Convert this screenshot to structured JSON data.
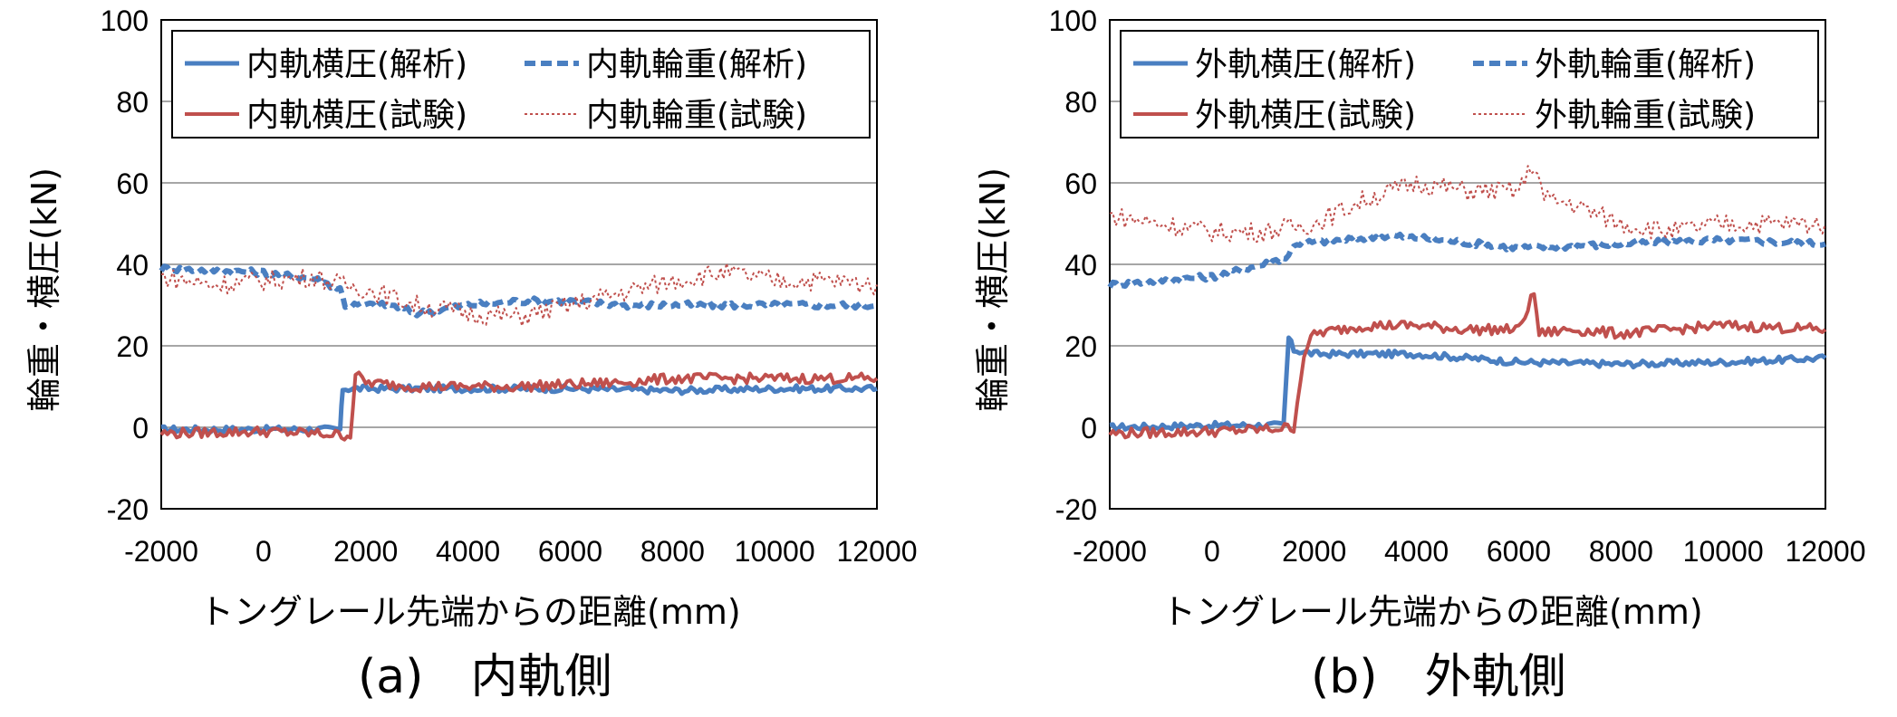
{
  "panels": [
    {
      "caption": "(a)　内軌側",
      "ylabel": "輪重・横圧(kN)",
      "xlabel": "トングレール先端からの距離(mm)"
    },
    {
      "caption": "(b)　外軌側",
      "ylabel": "輪重・横圧(kN)",
      "xlabel": "トングレール先端からの距離(mm)"
    }
  ],
  "colors": {
    "analysis": "#4a7fc1",
    "test": "#c0504d",
    "grid": "#a6a6a6"
  },
  "chart_data": [
    {
      "type": "line",
      "xlabel": "トングレール先端からの距離(mm)",
      "ylabel": "輪重・横圧(kN)",
      "xlim": [
        -2000,
        12000
      ],
      "ylim": [
        -20,
        100
      ],
      "xticks": [
        -2000,
        0,
        2000,
        4000,
        6000,
        8000,
        10000,
        12000
      ],
      "yticks": [
        -20,
        0,
        20,
        40,
        60,
        80,
        100
      ],
      "grid": "horizontal",
      "legend_position": "top",
      "series": [
        {
          "name": "内軌横圧(解析)",
          "style": "solid-analysis",
          "points": [
            [
              -2000,
              -0.5
            ],
            [
              0,
              -0.5
            ],
            [
              1500,
              -0.5
            ],
            [
              1550,
              9.5
            ],
            [
              2000,
              9.5
            ],
            [
              4000,
              9.5
            ],
            [
              6000,
              9.5
            ],
            [
              8000,
              9
            ],
            [
              10000,
              9.5
            ],
            [
              12000,
              9.5
            ]
          ]
        },
        {
          "name": "内軌輪重(解析)",
          "style": "dashed-analysis",
          "points": [
            [
              -2000,
              39
            ],
            [
              0,
              38
            ],
            [
              1000,
              36.5
            ],
            [
              1500,
              34
            ],
            [
              1600,
              30
            ],
            [
              2500,
              30
            ],
            [
              3000,
              28
            ],
            [
              3500,
              29
            ],
            [
              4000,
              30
            ],
            [
              5000,
              31
            ],
            [
              6000,
              31
            ],
            [
              7000,
              30
            ],
            [
              8000,
              30
            ],
            [
              10000,
              30
            ],
            [
              12000,
              30
            ]
          ]
        },
        {
          "name": "内軌横圧(試験)",
          "style": "solid-test",
          "points": [
            [
              -2000,
              -1.5
            ],
            [
              0,
              -1
            ],
            [
              1000,
              -1.5
            ],
            [
              1700,
              -2
            ],
            [
              1800,
              13
            ],
            [
              2000,
              11
            ],
            [
              3000,
              10
            ],
            [
              5000,
              10
            ],
            [
              6000,
              10.5
            ],
            [
              7000,
              11
            ],
            [
              8000,
              12
            ],
            [
              10000,
              12
            ],
            [
              12000,
              12
            ]
          ]
        },
        {
          "name": "内軌輪重(試験)",
          "style": "dotted-test",
          "points": [
            [
              -2000,
              37
            ],
            [
              -1000,
              35
            ],
            [
              0,
              36
            ],
            [
              1000,
              37
            ],
            [
              1500,
              35
            ],
            [
              2000,
              34
            ],
            [
              3000,
              30
            ],
            [
              4000,
              28
            ],
            [
              5000,
              27
            ],
            [
              6000,
              30
            ],
            [
              7000,
              33
            ],
            [
              8000,
              36
            ],
            [
              9000,
              38
            ],
            [
              10000,
              36
            ],
            [
              11000,
              36
            ],
            [
              12000,
              35
            ]
          ]
        }
      ]
    },
    {
      "type": "line",
      "xlabel": "トングレール先端からの距離(mm)",
      "ylabel": "輪重・横圧(kN)",
      "xlim": [
        -2000,
        12000
      ],
      "ylim": [
        -20,
        100
      ],
      "xticks": [
        -2000,
        0,
        2000,
        4000,
        6000,
        8000,
        10000,
        12000
      ],
      "yticks": [
        -20,
        0,
        20,
        40,
        60,
        80,
        100
      ],
      "grid": "horizontal",
      "legend_position": "top",
      "series": [
        {
          "name": "外軌横圧(解析)",
          "style": "solid-analysis",
          "points": [
            [
              -2000,
              0
            ],
            [
              0,
              0.5
            ],
            [
              1400,
              0.5
            ],
            [
              1500,
              22
            ],
            [
              1600,
              19
            ],
            [
              2000,
              18
            ],
            [
              4000,
              18
            ],
            [
              6000,
              16
            ],
            [
              8000,
              15.5
            ],
            [
              10000,
              16
            ],
            [
              12000,
              17
            ]
          ]
        },
        {
          "name": "外軌輪重(解析)",
          "style": "dashed-analysis",
          "points": [
            [
              -2000,
              35
            ],
            [
              0,
              37
            ],
            [
              1000,
              40
            ],
            [
              1500,
              42
            ],
            [
              1600,
              45
            ],
            [
              2500,
              46
            ],
            [
              3500,
              47
            ],
            [
              4500,
              46
            ],
            [
              6000,
              44
            ],
            [
              8000,
              45
            ],
            [
              10000,
              46
            ],
            [
              12000,
              45
            ]
          ]
        },
        {
          "name": "外軌横圧(試験)",
          "style": "solid-test",
          "points": [
            [
              -2000,
              -1.5
            ],
            [
              0,
              -1
            ],
            [
              1000,
              -0.5
            ],
            [
              1600,
              0
            ],
            [
              1800,
              18
            ],
            [
              2000,
              23
            ],
            [
              3000,
              25
            ],
            [
              4000,
              25
            ],
            [
              5000,
              24
            ],
            [
              6000,
              24
            ],
            [
              6300,
              33
            ],
            [
              6400,
              23
            ],
            [
              7000,
              24
            ],
            [
              8000,
              23
            ],
            [
              10000,
              25
            ],
            [
              12000,
              24
            ]
          ]
        },
        {
          "name": "外軌輪重(試験)",
          "style": "dotted-test",
          "points": [
            [
              -2000,
              52
            ],
            [
              -1000,
              50
            ],
            [
              0,
              48
            ],
            [
              1000,
              48
            ],
            [
              2000,
              50
            ],
            [
              3000,
              56
            ],
            [
              4000,
              60
            ],
            [
              5000,
              58
            ],
            [
              6000,
              58
            ],
            [
              6300,
              65
            ],
            [
              6500,
              56
            ],
            [
              7000,
              55
            ],
            [
              8000,
              50
            ],
            [
              9000,
              48
            ],
            [
              10000,
              50
            ],
            [
              11000,
              50
            ],
            [
              12000,
              50
            ]
          ]
        }
      ]
    }
  ]
}
